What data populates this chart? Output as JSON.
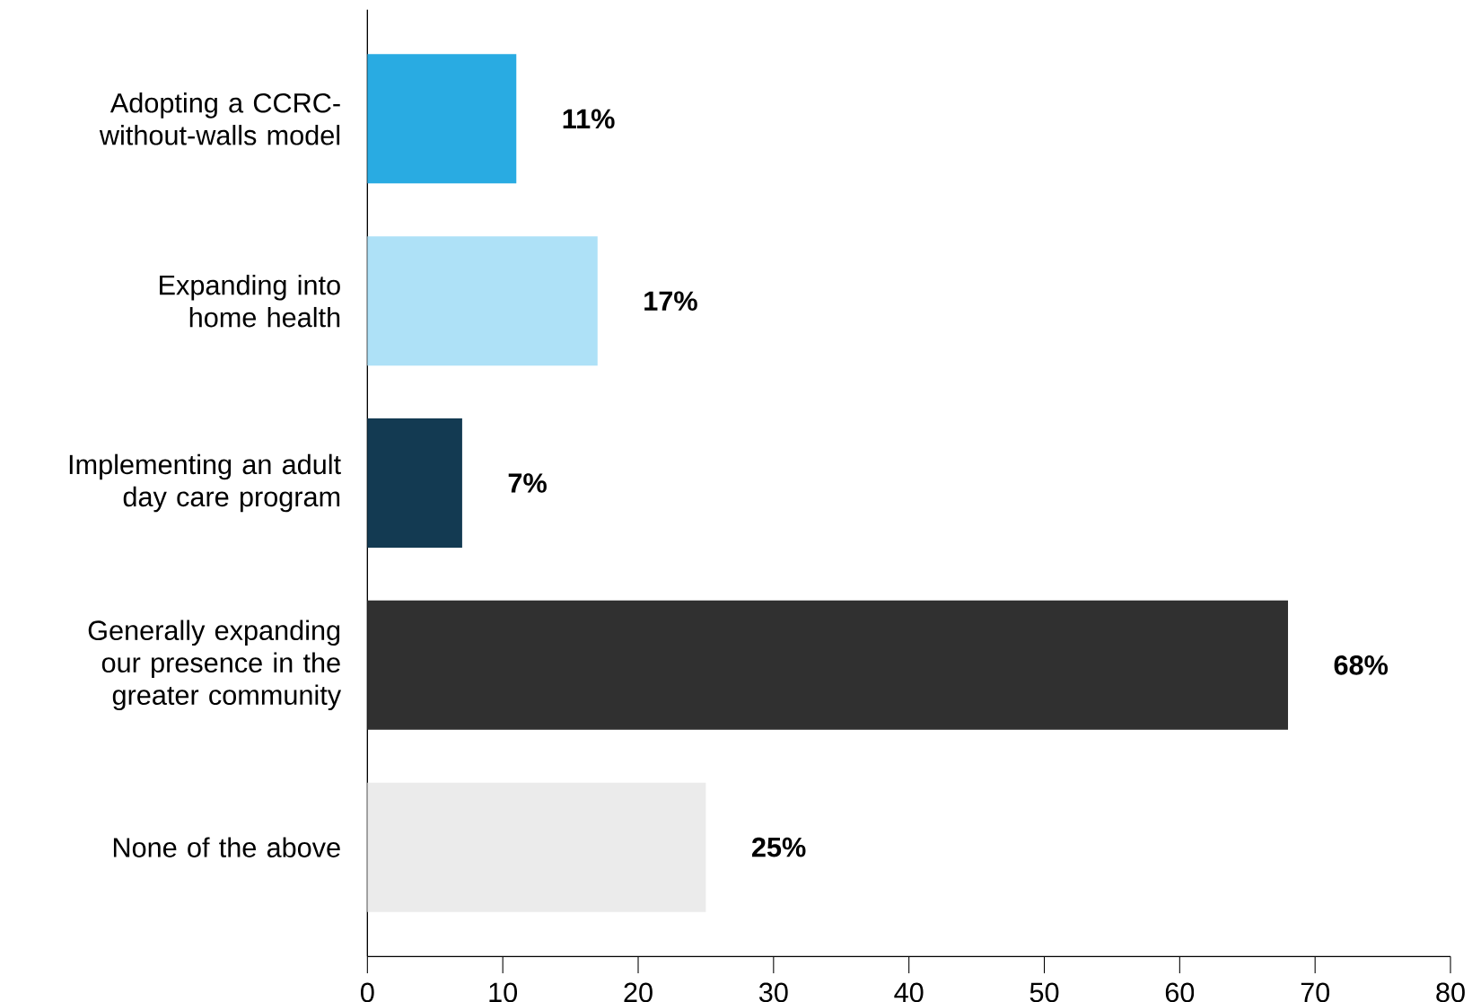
{
  "chart_data": {
    "type": "bar",
    "orientation": "horizontal",
    "categories": [
      "Adopting a CCRC-without-walls model",
      "Expanding into home health",
      "Implementing an adult day care program",
      "Generally expanding our presence in the greater community",
      "None of the above"
    ],
    "values": [
      11,
      17,
      7,
      68,
      25
    ],
    "colors": [
      "#29abe2",
      "#aee1f7",
      "#133a52",
      "#303030",
      "#ebebeb"
    ],
    "value_labels": [
      "11%",
      "17%",
      "7%",
      "68%",
      "25%"
    ],
    "xlim": [
      0,
      80
    ],
    "xticks": [
      0,
      10,
      20,
      30,
      40,
      50,
      60,
      70,
      80
    ],
    "grid": false
  }
}
